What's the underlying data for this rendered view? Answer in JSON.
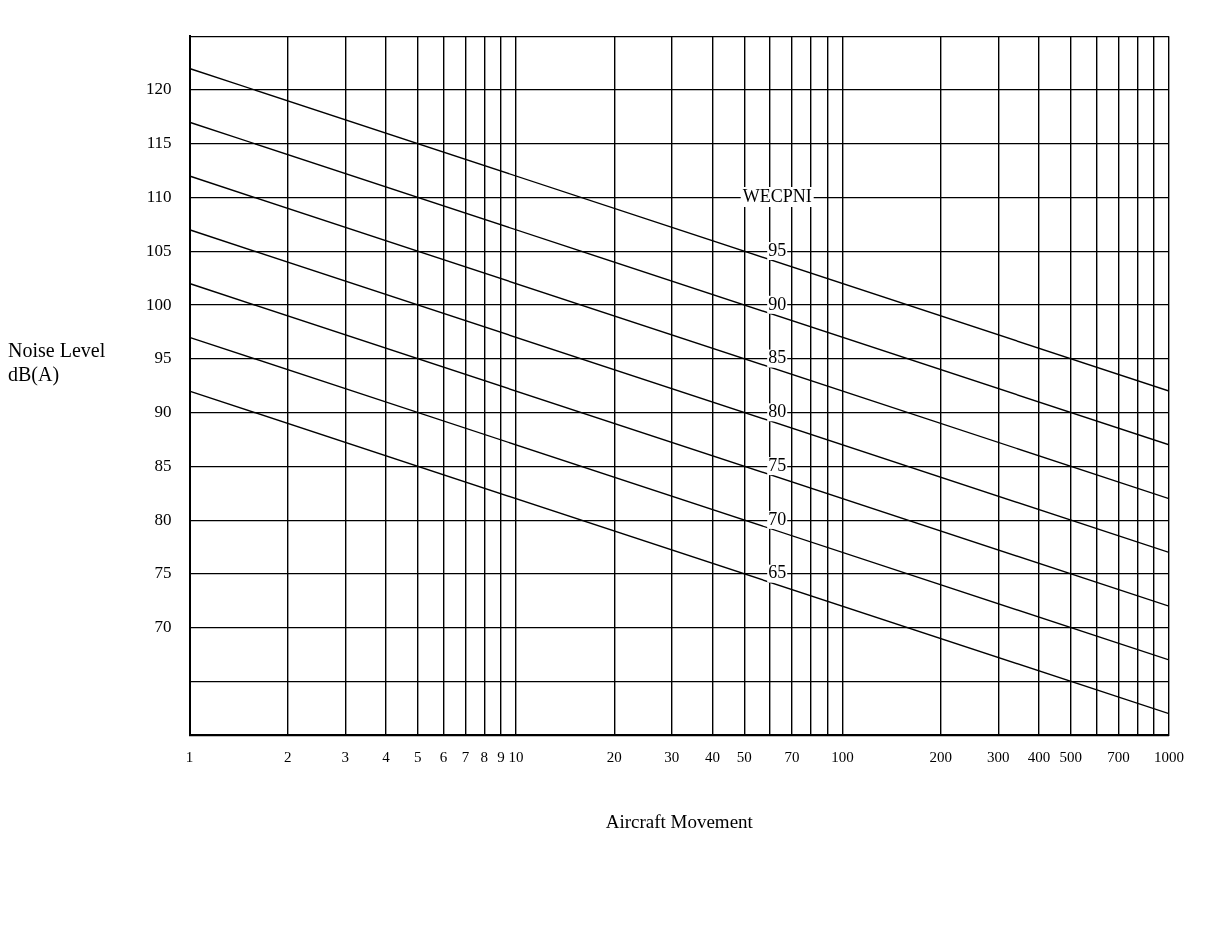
{
  "chart_data": {
    "type": "line",
    "xlabel": "Aircraft Movement",
    "ylabel": "Noise Level dB(A)",
    "x": [
      1,
      1000
    ],
    "series": [
      {
        "name": "95",
        "color": "#000000",
        "values": [
          122,
          92
        ]
      },
      {
        "name": "90",
        "color": "#000000",
        "values": [
          117,
          87
        ]
      },
      {
        "name": "85",
        "color": "#000000",
        "values": [
          112,
          82
        ]
      },
      {
        "name": "80",
        "color": "#000000",
        "values": [
          107,
          77
        ]
      },
      {
        "name": "75",
        "color": "#000000",
        "values": [
          102,
          72
        ]
      },
      {
        "name": "70",
        "color": "#000000",
        "values": [
          97,
          67
        ]
      },
      {
        "name": "65",
        "color": "#000000",
        "values": [
          92,
          62
        ]
      }
    ],
    "annotations": [
      "WECPNI"
    ],
    "log": "x",
    "xlim": [
      1,
      1000
    ],
    "xticks": [
      1,
      2,
      3,
      4,
      5,
      6,
      7,
      8,
      9,
      10,
      20,
      30,
      40,
      50,
      {
        "value": 60,
        "label": null
      },
      70,
      {
        "value": 80,
        "label": null
      },
      {
        "value": 90,
        "label": null
      },
      100,
      200,
      300,
      400,
      500,
      {
        "value": 600,
        "label": null
      },
      700,
      {
        "value": 800,
        "label": null
      },
      {
        "value": 900,
        "label": null
      },
      1000
    ],
    "ylim": [
      60,
      125
    ],
    "yticks": [
      {
        "value": 60,
        "label": null
      },
      {
        "value": 65,
        "label": null
      },
      70,
      75,
      80,
      85,
      90,
      95,
      100,
      105,
      110,
      115,
      120,
      {
        "value": 125,
        "label": null
      }
    ],
    "grid": true,
    "legend": false
  }
}
